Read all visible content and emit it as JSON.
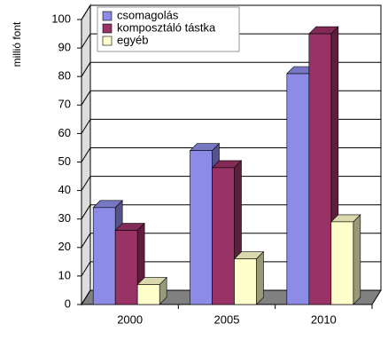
{
  "chart_data": {
    "type": "bar3d",
    "y_label": "millió font",
    "categories": [
      "2000",
      "2005",
      "2010"
    ],
    "series": [
      {
        "name": "csomagolás",
        "color": "#8c8ce6",
        "values": [
          34,
          54,
          81
        ]
      },
      {
        "name": "komposztáló tástka",
        "color": "#993366",
        "values": [
          26,
          48,
          95
        ]
      },
      {
        "name": "egyéb",
        "color": "#ffffcc",
        "values": [
          7,
          16,
          29
        ]
      }
    ],
    "ylim": [
      0,
      100
    ],
    "yticks": [
      0,
      10,
      20,
      30,
      40,
      50,
      60,
      70,
      80,
      90,
      100
    ],
    "grid": true
  }
}
